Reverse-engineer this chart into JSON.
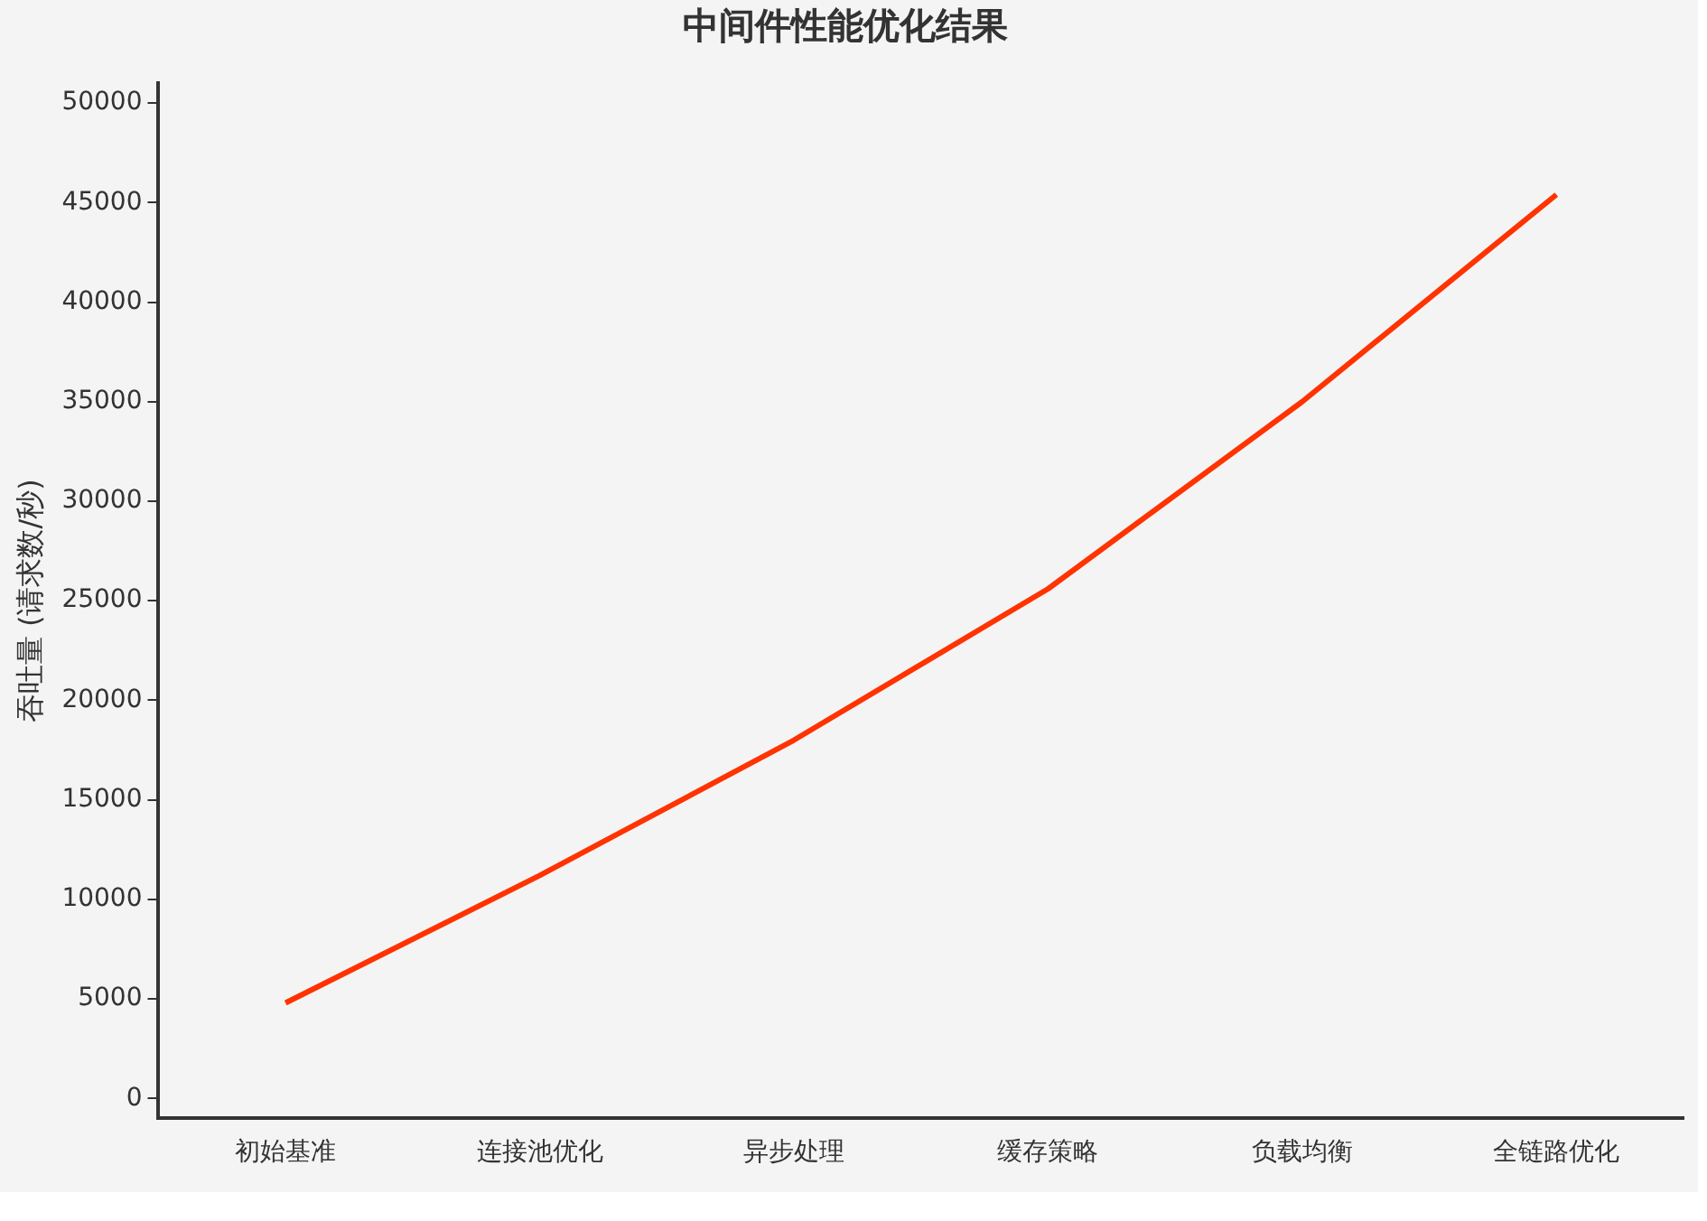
{
  "chart_data": {
    "type": "line",
    "title": "中间件性能优化结果",
    "ylabel": "吞吐量 (请求数/秒)",
    "categories": [
      "初始基准",
      "连接池优化",
      "异步处理",
      "缓存策略",
      "负载均衡",
      "全链路优化"
    ],
    "series": [
      {
        "color": "#ff3300",
        "values": [
          4800,
          11200,
          18000,
          25600,
          35000,
          45400
        ]
      }
    ],
    "ylim": [
      -1000,
      51000
    ],
    "yticks": [
      0,
      5000,
      10000,
      15000,
      20000,
      25000,
      30000,
      35000,
      40000,
      45000,
      50000
    ],
    "grid": false,
    "legend": false,
    "marker": "none",
    "line_style": "solid"
  }
}
